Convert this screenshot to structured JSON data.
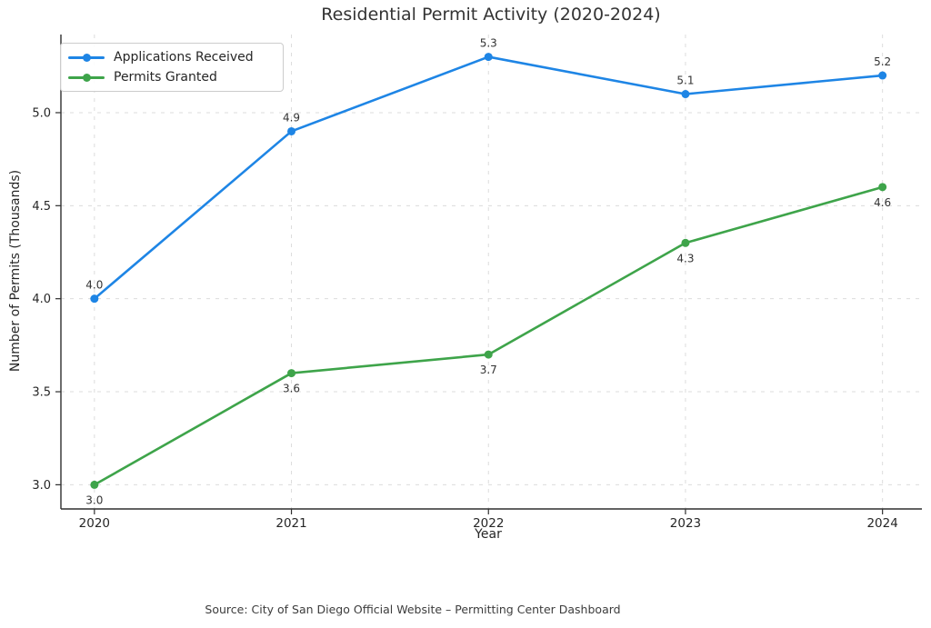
{
  "figure": {
    "title": "Residential Permit Activity (2020-2024)",
    "source_note": "Source: City of San Diego Official Website – Permitting Center Dashboard"
  },
  "chart_data": {
    "type": "line",
    "title": "Residential Permit Activity (2020-2024)",
    "xlabel": "Year",
    "ylabel": "Number of Permits (Thousands)",
    "x": [
      2020,
      2021,
      2022,
      2023,
      2024
    ],
    "x_tick_labels": [
      "2020",
      "2021",
      "2022",
      "2023",
      "2024"
    ],
    "y_ticks": [
      3.0,
      3.5,
      4.0,
      4.5,
      5.0
    ],
    "y_tick_labels": [
      "3.0",
      "3.5",
      "4.0",
      "4.5",
      "5.0"
    ],
    "ylim": [
      2.87,
      5.42
    ],
    "xlim": [
      2019.83,
      2024.2
    ],
    "grid": "both, dashed, light-gray",
    "legend_position": "upper-left",
    "series": [
      {
        "name": "Applications Received",
        "color": "#1e85e5",
        "values": [
          4.0,
          4.9,
          5.3,
          5.1,
          5.2
        ],
        "point_labels": [
          "4.0",
          "4.9",
          "5.3",
          "5.1",
          "5.2"
        ],
        "label_placement": "above"
      },
      {
        "name": "Permits Granted",
        "color": "#3ea44a",
        "values": [
          3.0,
          3.6,
          3.7,
          4.3,
          4.6
        ],
        "point_labels": [
          "3.0",
          "3.6",
          "3.7",
          "4.3",
          "4.6"
        ],
        "label_placement": "below"
      }
    ],
    "style": {
      "grid_color": "#dcdcdc",
      "spine_color": "#2f2f2f",
      "tick_text_color": "#262626",
      "annotation_color": "#333333",
      "line_width": 2.6,
      "marker_radius": 4.5
    }
  }
}
